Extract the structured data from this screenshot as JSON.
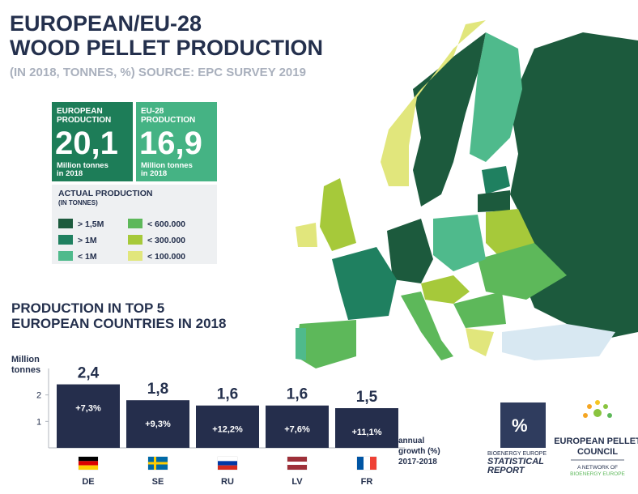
{
  "header": {
    "title_lines": [
      "EUROPEAN/EU-28",
      "WOOD PELLET PRODUCTION"
    ],
    "subtitle": "(IN 2018, TONNES, %) SOURCE: EPC SURVEY 2019"
  },
  "stats": [
    {
      "heading_lines": [
        "EUROPEAN",
        "PRODUCTION"
      ],
      "value": "20,1",
      "footer_lines": [
        "Million tonnes",
        "in 2018"
      ],
      "color": "#1d7d58"
    },
    {
      "heading_lines": [
        "EU-28",
        "PRODUCTION"
      ],
      "value": "16,9",
      "footer_lines": [
        "Million tonnes",
        "in 2018"
      ],
      "color": "#45b384"
    }
  ],
  "legend": {
    "title_lines": [
      "ACTUAL PRODUCTION",
      "(IN TONNES)"
    ],
    "items": [
      {
        "label": "> 1,5M",
        "color": "#1c5a3d"
      },
      {
        "label": "> 1M",
        "color": "#1f8060"
      },
      {
        "label": "< 1M",
        "color": "#4fba8c"
      },
      {
        "label": "< 600.000",
        "color": "#5db85a"
      },
      {
        "label": "< 300.000",
        "color": "#a6c93a"
      },
      {
        "label": "< 100.000",
        "color": "#e1e67c"
      }
    ]
  },
  "chart_data": {
    "type": "bar",
    "title_lines": [
      "PRODUCTION IN TOP 5",
      "EUROPEAN COUNTRIES IN 2018"
    ],
    "y_label_lines": [
      "Million",
      "tonnes"
    ],
    "categories": [
      "DE",
      "SE",
      "RU",
      "LV",
      "FR"
    ],
    "values": [
      2.4,
      1.8,
      1.6,
      1.6,
      1.5
    ],
    "value_labels": [
      "2,4",
      "1,8",
      "1,6",
      "1,6",
      "1,5"
    ],
    "growth": [
      7.3,
      9.3,
      12.2,
      7.6,
      11.1
    ],
    "growth_labels": [
      "+7,3%",
      "+9,3%",
      "+12,2%",
      "+7,6%",
      "+11,1%"
    ],
    "growth_note_lines": [
      "annual",
      "growth  (%)",
      "2017-2018"
    ],
    "color": "#252e4c",
    "ylim": [
      0,
      3
    ],
    "yticks": [
      1,
      2
    ],
    "grid": false
  },
  "logos": {
    "statistical": [
      "BIOENERGY EUROPE",
      "STATISTICAL",
      "REPORT"
    ],
    "epc": [
      "EUROPEAN PELLET",
      "COUNCIL",
      "A NETWORK OF",
      "BIOENERGY EUROPE"
    ]
  }
}
